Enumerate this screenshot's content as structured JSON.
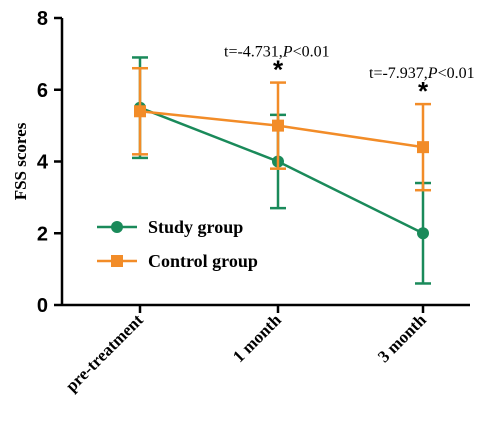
{
  "chart_data": {
    "type": "line",
    "categories": [
      "pre-treatment",
      "1 month",
      "3 month"
    ],
    "series": [
      {
        "name": "Study group",
        "color": "#1a8a5a",
        "marker": "circle",
        "values": [
          5.5,
          4.0,
          2.0
        ],
        "error": [
          1.4,
          1.3,
          1.4
        ]
      },
      {
        "name": "Control group",
        "color": "#f28c28",
        "marker": "square",
        "values": [
          5.4,
          5.0,
          4.4
        ],
        "error": [
          1.2,
          1.2,
          1.2
        ]
      }
    ],
    "ylabel": "FSS scores",
    "ylim": [
      0,
      8
    ],
    "yticks": [
      "0",
      "2",
      "4",
      "6",
      "8"
    ],
    "legend_position": "bottom-left",
    "grid": false,
    "annotations": [
      {
        "category": "1 month",
        "star": "*",
        "text": "t=-4.731,",
        "italic": "P",
        "rest": "<0.01"
      },
      {
        "category": "3 month",
        "star": "*",
        "text": "t=-7.937,",
        "italic": "P",
        "rest": "<0.01"
      }
    ]
  }
}
